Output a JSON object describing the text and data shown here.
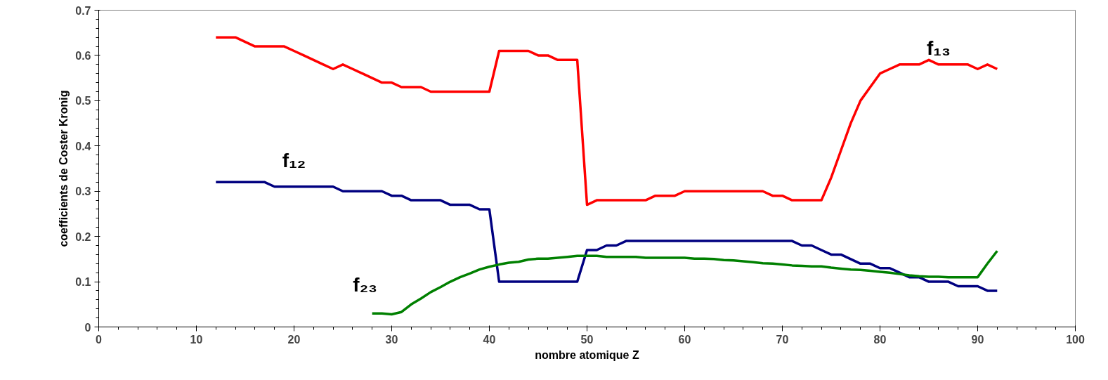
{
  "chart_data": {
    "type": "line",
    "xlabel": "nombre atomique Z",
    "ylabel": "coefficients de Coster Kronig",
    "xlim": [
      0,
      100
    ],
    "xticks": [
      0,
      10,
      20,
      30,
      40,
      50,
      60,
      70,
      80,
      90,
      100
    ],
    "ylim": [
      0,
      0.7
    ],
    "yticks": [
      0,
      0.1,
      0.2,
      0.3,
      0.4,
      0.5,
      0.6,
      0.7
    ],
    "grid": false,
    "marker": "none",
    "line_style": "solid",
    "series": [
      {
        "name": "f₁₃",
        "color": "#ff0000",
        "x": [
          12,
          13,
          14,
          15,
          16,
          17,
          18,
          19,
          20,
          21,
          22,
          23,
          24,
          25,
          26,
          27,
          28,
          29,
          30,
          31,
          32,
          33,
          34,
          35,
          36,
          37,
          38,
          39,
          40,
          41,
          42,
          43,
          44,
          45,
          46,
          47,
          48,
          49,
          50,
          51,
          52,
          53,
          54,
          55,
          56,
          57,
          58,
          59,
          60,
          61,
          62,
          63,
          64,
          65,
          66,
          67,
          68,
          69,
          70,
          71,
          72,
          73,
          74,
          75,
          76,
          77,
          78,
          79,
          80,
          81,
          82,
          83,
          84,
          85,
          86,
          87,
          88,
          89,
          90,
          91,
          92
        ],
        "values": [
          0.64,
          0.64,
          0.64,
          0.63,
          0.62,
          0.62,
          0.62,
          0.62,
          0.61,
          0.6,
          0.59,
          0.58,
          0.57,
          0.58,
          0.57,
          0.56,
          0.55,
          0.54,
          0.54,
          0.53,
          0.53,
          0.53,
          0.52,
          0.52,
          0.52,
          0.52,
          0.52,
          0.52,
          0.52,
          0.61,
          0.61,
          0.61,
          0.61,
          0.6,
          0.6,
          0.59,
          0.59,
          0.59,
          0.27,
          0.28,
          0.28,
          0.28,
          0.28,
          0.28,
          0.28,
          0.29,
          0.29,
          0.29,
          0.3,
          0.3,
          0.3,
          0.3,
          0.3,
          0.3,
          0.3,
          0.3,
          0.3,
          0.29,
          0.29,
          0.28,
          0.28,
          0.28,
          0.28,
          0.33,
          0.39,
          0.45,
          0.5,
          0.53,
          0.56,
          0.57,
          0.58,
          0.58,
          0.58,
          0.59,
          0.58,
          0.58,
          0.58,
          0.58,
          0.57,
          0.58,
          0.57
        ]
      },
      {
        "name": "f₁₂",
        "color": "#000080",
        "x": [
          12,
          13,
          14,
          15,
          16,
          17,
          18,
          19,
          20,
          21,
          22,
          23,
          24,
          25,
          26,
          27,
          28,
          29,
          30,
          31,
          32,
          33,
          34,
          35,
          36,
          37,
          38,
          39,
          40,
          41,
          42,
          43,
          44,
          45,
          46,
          47,
          48,
          49,
          50,
          51,
          52,
          53,
          54,
          55,
          56,
          57,
          58,
          59,
          60,
          61,
          62,
          63,
          64,
          65,
          66,
          67,
          68,
          69,
          70,
          71,
          72,
          73,
          74,
          75,
          76,
          77,
          78,
          79,
          80,
          81,
          82,
          83,
          84,
          85,
          86,
          87,
          88,
          89,
          90,
          91,
          92
        ],
        "values": [
          0.32,
          0.32,
          0.32,
          0.32,
          0.32,
          0.32,
          0.31,
          0.31,
          0.31,
          0.31,
          0.31,
          0.31,
          0.31,
          0.3,
          0.3,
          0.3,
          0.3,
          0.3,
          0.29,
          0.29,
          0.28,
          0.28,
          0.28,
          0.28,
          0.27,
          0.27,
          0.27,
          0.26,
          0.26,
          0.1,
          0.1,
          0.1,
          0.1,
          0.1,
          0.1,
          0.1,
          0.1,
          0.1,
          0.17,
          0.17,
          0.18,
          0.18,
          0.19,
          0.19,
          0.19,
          0.19,
          0.19,
          0.19,
          0.19,
          0.19,
          0.19,
          0.19,
          0.19,
          0.19,
          0.19,
          0.19,
          0.19,
          0.19,
          0.19,
          0.19,
          0.18,
          0.18,
          0.17,
          0.16,
          0.16,
          0.15,
          0.14,
          0.14,
          0.13,
          0.13,
          0.12,
          0.11,
          0.11,
          0.1,
          0.1,
          0.1,
          0.09,
          0.09,
          0.09,
          0.08,
          0.08
        ]
      },
      {
        "name": "f₂₃",
        "color": "#008000",
        "x": [
          28,
          29,
          30,
          31,
          32,
          33,
          34,
          35,
          36,
          37,
          38,
          39,
          40,
          41,
          42,
          43,
          44,
          45,
          46,
          47,
          48,
          49,
          50,
          51,
          52,
          53,
          54,
          55,
          56,
          57,
          58,
          59,
          60,
          61,
          62,
          63,
          64,
          65,
          66,
          67,
          68,
          69,
          70,
          71,
          72,
          73,
          74,
          75,
          76,
          77,
          78,
          79,
          80,
          81,
          82,
          83,
          84,
          85,
          86,
          87,
          88,
          89,
          90,
          91,
          92
        ],
        "values": [
          0.03,
          0.03,
          0.028,
          0.033,
          0.05,
          0.063,
          0.077,
          0.088,
          0.1,
          0.11,
          0.118,
          0.127,
          0.133,
          0.138,
          0.142,
          0.144,
          0.149,
          0.151,
          0.151,
          0.153,
          0.155,
          0.157,
          0.157,
          0.157,
          0.155,
          0.155,
          0.155,
          0.155,
          0.153,
          0.153,
          0.153,
          0.153,
          0.153,
          0.151,
          0.151,
          0.15,
          0.148,
          0.147,
          0.145,
          0.143,
          0.141,
          0.14,
          0.138,
          0.136,
          0.135,
          0.134,
          0.134,
          0.131,
          0.129,
          0.127,
          0.126,
          0.124,
          0.122,
          0.12,
          0.117,
          0.114,
          0.112,
          0.111,
          0.111,
          0.11,
          0.11,
          0.11,
          0.11,
          0.14,
          0.168
        ]
      }
    ]
  }
}
